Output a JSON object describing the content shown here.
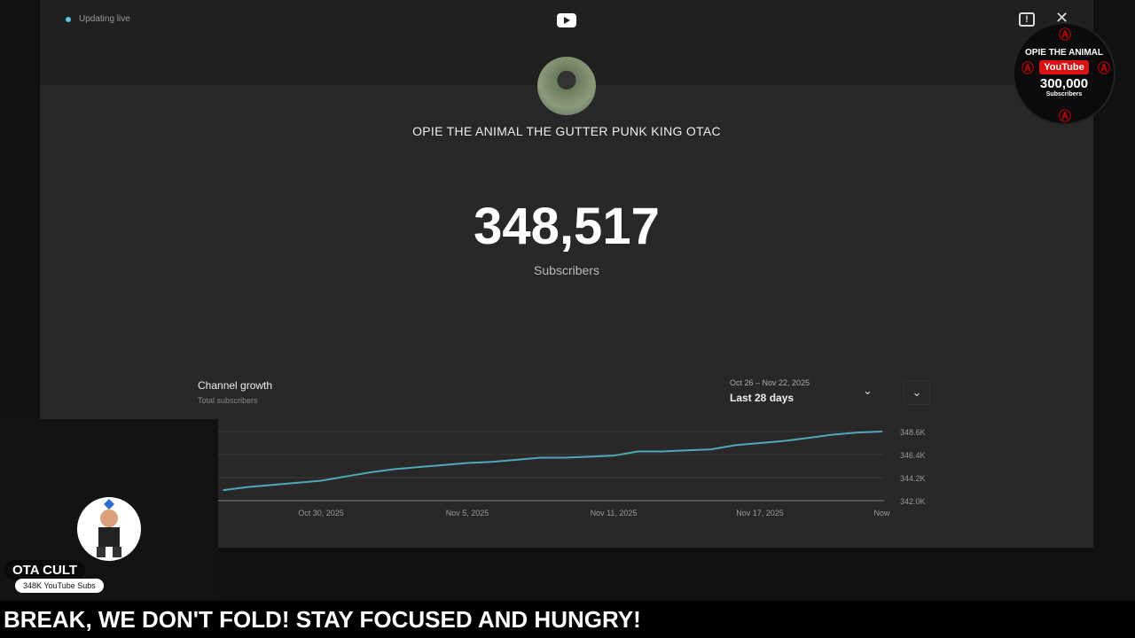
{
  "status": {
    "live_label": "Updating live",
    "dot_color": "#5cc3e0"
  },
  "channel": {
    "name": "OPIE THE ANIMAL THE GUTTER PUNK KING OTAC",
    "subscriber_count": "348,517",
    "subscriber_label": "Subscribers"
  },
  "growth": {
    "title": "Channel growth",
    "subtitle": "Total subscribers",
    "date_range": "Oct 26 – Nov 22, 2025",
    "range_label": "Last 28 days"
  },
  "chart_data": {
    "type": "line",
    "title": "Channel growth",
    "ylabel": "Total subscribers (K)",
    "x": [
      0,
      1,
      2,
      3,
      4,
      5,
      6,
      7,
      8,
      9,
      10,
      11,
      12,
      13,
      14,
      15,
      16,
      17,
      18,
      19,
      20,
      21,
      22,
      23,
      24,
      25,
      26,
      27
    ],
    "values": [
      343.0,
      343.3,
      343.5,
      343.7,
      343.9,
      344.3,
      344.7,
      345.0,
      345.2,
      345.4,
      345.6,
      345.7,
      345.9,
      346.1,
      346.1,
      346.2,
      346.3,
      346.7,
      346.7,
      346.8,
      346.9,
      347.3,
      347.5,
      347.7,
      348.0,
      348.3,
      348.5,
      348.6
    ],
    "ylim": [
      342.0,
      348.6
    ],
    "yticks": [
      {
        "v": 348.6,
        "label": "348.6K"
      },
      {
        "v": 346.4,
        "label": "346.4K"
      },
      {
        "v": 344.2,
        "label": "344.2K"
      },
      {
        "v": 342.0,
        "label": "342.0K"
      }
    ],
    "xticks": [
      {
        "d": 4,
        "label": "Oct 30, 2025"
      },
      {
        "d": 10,
        "label": "Nov 5, 2025"
      },
      {
        "d": 16,
        "label": "Nov 11, 2025"
      },
      {
        "d": 22,
        "label": "Nov 17, 2025"
      },
      {
        "d": 27,
        "label": "Now"
      }
    ],
    "line_color": "#4fa8b8",
    "grid": true
  },
  "overlay": {
    "name": "OTA CULT",
    "subs": "348K YouTube Subs",
    "ticker": "BREAK, WE DON'T FOLD! STAY FOCUSED AND HUNGRY!"
  },
  "badge": {
    "title": "OPIE THE ANIMAL",
    "logo": "YouTube",
    "count": "300,000",
    "label": "Subscribers"
  },
  "icons": {
    "youtube": "youtube-logo-icon",
    "feedback": "feedback-icon",
    "close": "close-icon"
  }
}
